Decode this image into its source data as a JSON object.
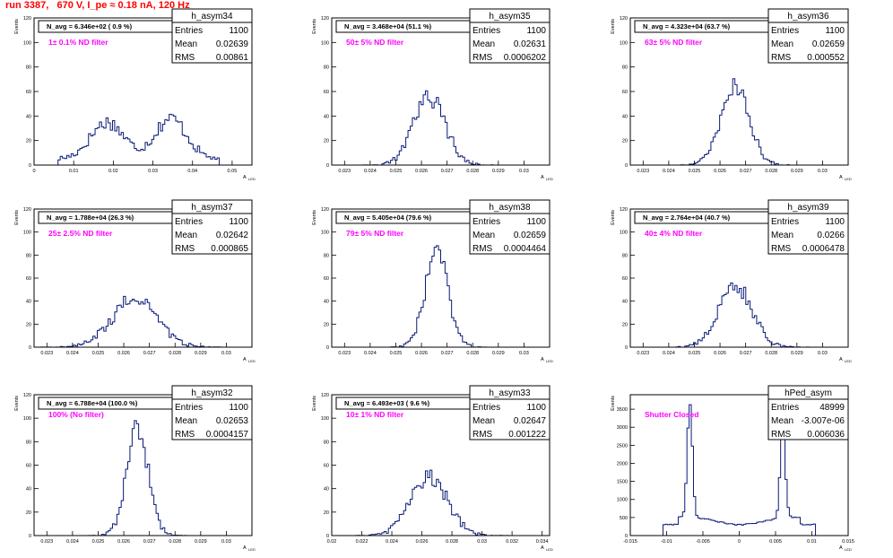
{
  "page": {
    "title": "run 3387,   670 V, I_pe ≈ 0.18 nA, 120 Hz"
  },
  "stats_labels": {
    "entries": "Entries",
    "mean": "Mean",
    "rms": "RMS"
  },
  "axis_labels": {
    "y": "Events",
    "x_main": "A",
    "x_sub": "LED"
  },
  "chart_data": [
    {
      "type": "bar",
      "name": "h_asym34",
      "annotation": "N_avg = 6.346e+02 ( 0.9 %)",
      "filter_label": "1± 0.1% ND filter",
      "stats": {
        "entries": "1100",
        "mean": "0.02639",
        "rms": "0.00861"
      },
      "xlim": [
        0,
        0.055
      ],
      "ylim": [
        0,
        120
      ],
      "xticks": [
        0,
        0.01,
        0.02,
        0.03,
        0.04,
        0.05
      ],
      "xtick_labels": [
        "0",
        "0.01",
        "0.02",
        "0.03",
        "0.04",
        "0.05"
      ],
      "yticks": [
        0,
        20,
        40,
        60,
        80,
        100,
        120
      ],
      "ytick_labels": [
        "0",
        "20",
        "40",
        "60",
        "80",
        "100",
        "120"
      ],
      "shape": {
        "kind": "dual",
        "c1": 0.0185,
        "w1": 0.0042,
        "a1": 30,
        "c2": 0.0345,
        "w2": 0.004,
        "a2": 33,
        "xmin": 0.006,
        "xmax": 0.047
      }
    },
    {
      "type": "bar",
      "name": "h_asym35",
      "annotation": "N_avg = 3.468e+04 (51.1 %)",
      "filter_label": "50± 5% ND filter",
      "stats": {
        "entries": "1100",
        "mean": "0.02631",
        "rms": "0.0006202"
      },
      "xlim": [
        0.0225,
        0.031
      ],
      "ylim": [
        0,
        120
      ],
      "xticks": [
        0.023,
        0.024,
        0.025,
        0.026,
        0.027,
        0.028,
        0.029,
        0.03
      ],
      "xtick_labels": [
        "0.023",
        "0.024",
        "0.025",
        "0.026",
        "0.027",
        "0.028",
        "0.029",
        "0.03"
      ],
      "yticks": [
        0,
        20,
        40,
        60,
        80,
        100,
        120
      ],
      "ytick_labels": [
        "0",
        "20",
        "40",
        "60",
        "80",
        "100",
        "120"
      ],
      "shape": {
        "kind": "gauss",
        "c": 0.02631,
        "s": 0.00062,
        "a": 55
      }
    },
    {
      "type": "bar",
      "name": "h_asym36",
      "annotation": "N_avg = 4.323e+04 (63.7 %)",
      "filter_label": "63± 5% ND filter",
      "stats": {
        "entries": "1100",
        "mean": "0.02659",
        "rms": "0.000552"
      },
      "xlim": [
        0.0225,
        0.031
      ],
      "ylim": [
        0,
        120
      ],
      "xticks": [
        0.023,
        0.024,
        0.025,
        0.026,
        0.027,
        0.028,
        0.029,
        0.03
      ],
      "xtick_labels": [
        "0.023",
        "0.024",
        "0.025",
        "0.026",
        "0.027",
        "0.028",
        "0.029",
        "0.03"
      ],
      "yticks": [
        0,
        20,
        40,
        60,
        80,
        100,
        120
      ],
      "ytick_labels": [
        "0",
        "20",
        "40",
        "60",
        "80",
        "100",
        "120"
      ],
      "shape": {
        "kind": "gauss",
        "c": 0.02659,
        "s": 0.00055,
        "a": 64
      }
    },
    {
      "type": "bar",
      "name": "h_asym37",
      "annotation": "N_avg = 1.788e+04 (26.3 %)",
      "filter_label": "25± 2.5% ND filter",
      "stats": {
        "entries": "1100",
        "mean": "0.02642",
        "rms": "0.000865"
      },
      "xlim": [
        0.0225,
        0.031
      ],
      "ylim": [
        0,
        120
      ],
      "xticks": [
        0.023,
        0.024,
        0.025,
        0.026,
        0.027,
        0.028,
        0.029,
        0.03
      ],
      "xtick_labels": [
        "0.023",
        "0.024",
        "0.025",
        "0.026",
        "0.027",
        "0.028",
        "0.029",
        "0.03"
      ],
      "yticks": [
        0,
        20,
        40,
        60,
        80,
        100,
        120
      ],
      "ytick_labels": [
        "0",
        "20",
        "40",
        "60",
        "80",
        "100",
        "120"
      ],
      "shape": {
        "kind": "gauss",
        "c": 0.02642,
        "s": 0.00087,
        "a": 42
      }
    },
    {
      "type": "bar",
      "name": "h_asym38",
      "annotation": "N_avg = 5.405e+04 (79.6 %)",
      "filter_label": "79± 5% ND filter",
      "stats": {
        "entries": "1100",
        "mean": "0.02659",
        "rms": "0.0004464"
      },
      "xlim": [
        0.0225,
        0.031
      ],
      "ylim": [
        0,
        120
      ],
      "xticks": [
        0.023,
        0.024,
        0.025,
        0.026,
        0.027,
        0.028,
        0.029,
        0.03
      ],
      "xtick_labels": [
        "0.023",
        "0.024",
        "0.025",
        "0.026",
        "0.027",
        "0.028",
        "0.029",
        "0.03"
      ],
      "yticks": [
        0,
        20,
        40,
        60,
        80,
        100,
        120
      ],
      "ytick_labels": [
        "0",
        "20",
        "40",
        "60",
        "80",
        "100",
        "120"
      ],
      "shape": {
        "kind": "gauss",
        "c": 0.02659,
        "s": 0.00045,
        "a": 82
      }
    },
    {
      "type": "bar",
      "name": "h_asym39",
      "annotation": "N_avg = 2.764e+04 (40.7 %)",
      "filter_label": "40± 4% ND filter",
      "stats": {
        "entries": "1100",
        "mean": "0.0266",
        "rms": "0.0006478"
      },
      "xlim": [
        0.0225,
        0.031
      ],
      "ylim": [
        0,
        120
      ],
      "xticks": [
        0.023,
        0.024,
        0.025,
        0.026,
        0.027,
        0.028,
        0.029,
        0.03
      ],
      "xtick_labels": [
        "0.023",
        "0.024",
        "0.025",
        "0.026",
        "0.027",
        "0.028",
        "0.029",
        "0.03"
      ],
      "yticks": [
        0,
        20,
        40,
        60,
        80,
        100,
        120
      ],
      "ytick_labels": [
        "0",
        "20",
        "40",
        "60",
        "80",
        "100",
        "120"
      ],
      "shape": {
        "kind": "gauss",
        "c": 0.0266,
        "s": 0.00065,
        "a": 54
      }
    },
    {
      "type": "bar",
      "name": "h_asym32",
      "annotation": "N_avg = 6.788e+04 (100.0 %)",
      "filter_label": "100% (No filter)",
      "stats": {
        "entries": "1100",
        "mean": "0.02653",
        "rms": "0.0004157"
      },
      "xlim": [
        0.0225,
        0.031
      ],
      "ylim": [
        0,
        120
      ],
      "xticks": [
        0.023,
        0.024,
        0.025,
        0.026,
        0.027,
        0.028,
        0.029,
        0.03
      ],
      "xtick_labels": [
        "0.023",
        "0.024",
        "0.025",
        "0.026",
        "0.027",
        "0.028",
        "0.029",
        "0.03"
      ],
      "yticks": [
        0,
        20,
        40,
        60,
        80,
        100,
        120
      ],
      "ytick_labels": [
        "0",
        "20",
        "40",
        "60",
        "80",
        "100",
        "120"
      ],
      "shape": {
        "kind": "gauss",
        "c": 0.02653,
        "s": 0.00042,
        "a": 92
      }
    },
    {
      "type": "bar",
      "name": "h_asym33",
      "annotation": "N_avg = 6.493e+03 ( 9.6 %)",
      "filter_label": "10± 1% ND filter",
      "stats": {
        "entries": "1100",
        "mean": "0.02647",
        "rms": "0.001222"
      },
      "xlim": [
        0.02,
        0.0345
      ],
      "ylim": [
        0,
        120
      ],
      "xticks": [
        0.02,
        0.022,
        0.024,
        0.026,
        0.028,
        0.03,
        0.032,
        0.034
      ],
      "xtick_labels": [
        "0.02",
        "0.022",
        "0.024",
        "0.026",
        "0.028",
        "0.03",
        "0.032",
        "0.034"
      ],
      "yticks": [
        0,
        20,
        40,
        60,
        80,
        100,
        120
      ],
      "ytick_labels": [
        "0",
        "20",
        "40",
        "60",
        "80",
        "100",
        "120"
      ],
      "shape": {
        "kind": "gauss",
        "c": 0.02647,
        "s": 0.00122,
        "a": 50
      }
    },
    {
      "type": "bar",
      "name": "hPed_asym",
      "annotation": "",
      "filter_label": "Shutter Closed",
      "stats": {
        "entries": "48999",
        "mean": "-3.007e-06",
        "rms": "0.006036"
      },
      "xlim": [
        -0.015,
        0.015
      ],
      "ylim": [
        0,
        3900
      ],
      "xticks": [
        -0.015,
        -0.01,
        -0.005,
        0,
        0.005,
        0.01,
        0.015
      ],
      "xtick_labels": [
        "-0.015",
        "-0.01",
        "-0.005",
        "0",
        "0.005",
        "0.01",
        "0.015"
      ],
      "yticks": [
        0,
        500,
        1000,
        1500,
        2000,
        2500,
        3000,
        3500
      ],
      "ytick_labels": [
        "0",
        "500",
        "1000",
        "1500",
        "2000",
        "2500",
        "3000",
        "3500"
      ],
      "shape": {
        "kind": "ped"
      }
    }
  ]
}
